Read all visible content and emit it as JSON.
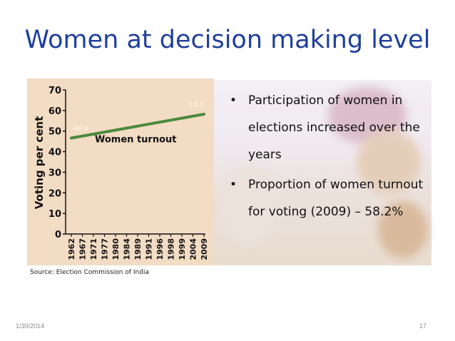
{
  "slide": {
    "title": "Women at decision making level",
    "bullets": [
      "Participation of women in elections increased over the years",
      "Proportion of women turnout for voting (2009) – 58.2%"
    ],
    "bullet_symbol": "•",
    "source": "Source: Election Commission of India",
    "date": "1/30/2014",
    "page_number": "17"
  },
  "chart_data": {
    "type": "line",
    "title": "",
    "xlabel": "",
    "ylabel": "Voting per cent",
    "ylim": [
      0,
      70
    ],
    "yticks": [
      "0",
      "10",
      "20",
      "30",
      "40",
      "50",
      "60",
      "70"
    ],
    "categories": [
      "1962",
      "1967",
      "1971",
      "1977",
      "1980",
      "1984",
      "1989",
      "1991",
      "1996",
      "1998",
      "1999",
      "2004",
      "2009"
    ],
    "series": [
      {
        "name": "Women turnout",
        "start": {
          "x": "1962",
          "y": 46.6,
          "label": "46.6"
        },
        "end": {
          "x": "2009",
          "y": 58.2,
          "label": "58.2"
        }
      }
    ],
    "colors": {
      "background": "#f3dcc4",
      "axis": "#111111",
      "line": "#4a8a3c",
      "value_label": "#fff6e8"
    }
  }
}
